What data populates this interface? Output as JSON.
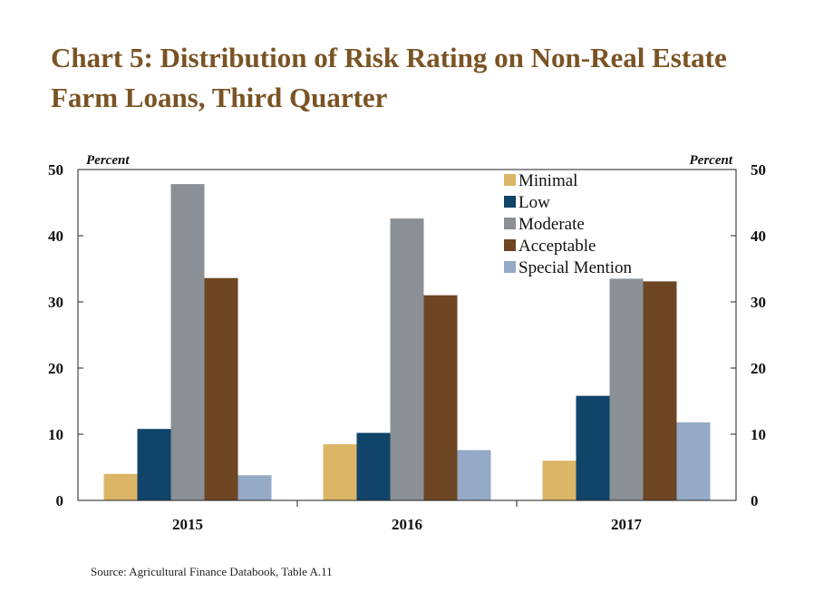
{
  "title": "Chart 5: Distribution of Risk Rating on Non-Real Estate Farm Loans, Third Quarter",
  "source": "Source: Agricultural Finance Databook, Table A.11",
  "colors": {
    "Minimal": "#dcb567",
    "Low": "#104468",
    "Moderate": "#8a9095",
    "Acceptable": "#6e4623",
    "Special Mention": "#94aac6"
  },
  "chart_data": {
    "type": "bar",
    "title": "Chart 5: Distribution of Risk Rating on Non-Real Estate Farm Loans, Third Quarter",
    "ylabel_left": "Percent",
    "ylabel_right": "Percent",
    "ylim": [
      0,
      50
    ],
    "yticks": [
      0,
      10,
      20,
      30,
      40,
      50
    ],
    "categories": [
      "2015",
      "2016",
      "2017"
    ],
    "legend_position": "top-right",
    "series": [
      {
        "name": "Minimal",
        "values": [
          4,
          8.5,
          6
        ]
      },
      {
        "name": "Low",
        "values": [
          10.8,
          10.2,
          15.8
        ]
      },
      {
        "name": "Moderate",
        "values": [
          47.8,
          42.6,
          33.5
        ]
      },
      {
        "name": "Acceptable",
        "values": [
          33.6,
          31,
          33.1
        ]
      },
      {
        "name": "Special Mention",
        "values": [
          3.8,
          7.6,
          11.8
        ]
      }
    ]
  }
}
